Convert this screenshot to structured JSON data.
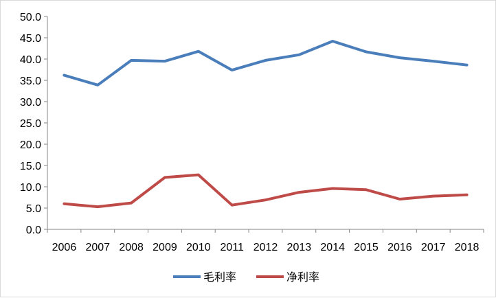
{
  "chart_data": {
    "type": "line",
    "categories": [
      "2006",
      "2007",
      "2008",
      "2009",
      "2010",
      "2011",
      "2012",
      "2013",
      "2014",
      "2015",
      "2016",
      "2017",
      "2018"
    ],
    "series": [
      {
        "name": "毛利率",
        "color": "#4a7ebb",
        "values": [
          36.2,
          33.9,
          39.7,
          39.5,
          41.8,
          37.4,
          39.7,
          41.0,
          44.2,
          41.7,
          40.3,
          39.5,
          38.6
        ]
      },
      {
        "name": "净利率",
        "color": "#be4b48",
        "values": [
          6.0,
          5.3,
          6.2,
          12.2,
          12.8,
          5.7,
          6.9,
          8.7,
          9.6,
          9.3,
          7.1,
          7.8,
          8.1
        ]
      }
    ],
    "y_ticks": [
      "0.0",
      "5.0",
      "10.0",
      "15.0",
      "20.0",
      "25.0",
      "30.0",
      "35.0",
      "40.0",
      "45.0",
      "50.0"
    ],
    "ylim": [
      0,
      50
    ],
    "grid": false,
    "legend_position": "bottom"
  }
}
